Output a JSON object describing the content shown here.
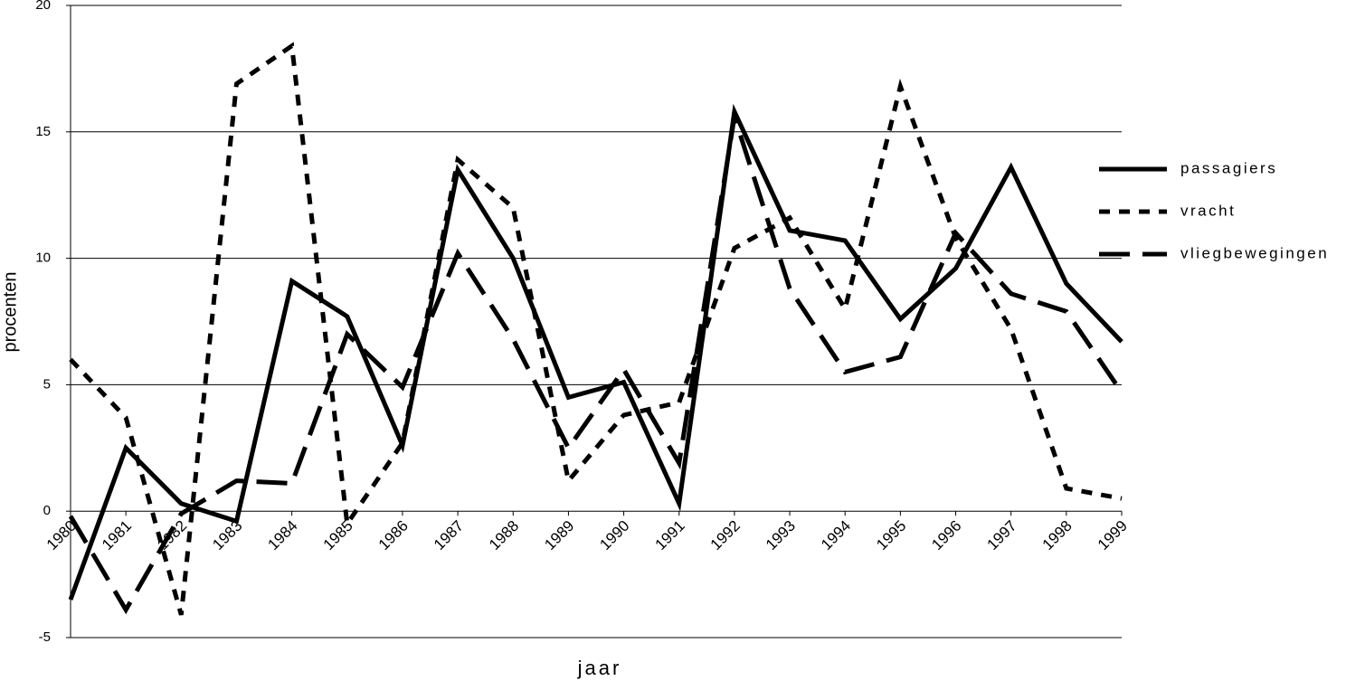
{
  "chart_data": {
    "type": "line",
    "x_label": "jaar",
    "y_label": "procenten",
    "categories": [
      "1980",
      "1981",
      "1982",
      "1983",
      "1984",
      "1985",
      "1986",
      "1987",
      "1988",
      "1989",
      "1990",
      "1991",
      "1992",
      "1993",
      "1994",
      "1995",
      "1996",
      "1997",
      "1998",
      "1999"
    ],
    "series": [
      {
        "name": "passagiers",
        "color": "#000000",
        "line_style": "solid",
        "values": [
          -3.5,
          2.5,
          0.3,
          -0.4,
          9.1,
          7.7,
          2.6,
          13.5,
          10.0,
          4.5,
          5.1,
          0.3,
          15.8,
          11.1,
          10.7,
          7.6,
          9.6,
          13.6,
          9.0,
          6.7
        ]
      },
      {
        "name": "vracht",
        "color": "#000000",
        "line_style": "short-dash",
        "values": [
          6.0,
          3.7,
          -4.1,
          16.9,
          18.4,
          -0.5,
          2.7,
          13.9,
          12.0,
          1.2,
          3.8,
          4.3,
          10.4,
          11.6,
          8.0,
          16.8,
          10.8,
          7.2,
          0.9,
          0.5
        ]
      },
      {
        "name": "vliegbewegingen",
        "color": "#000000",
        "line_style": "long-dash",
        "values": [
          -0.2,
          -3.9,
          -0.1,
          1.2,
          1.1,
          7.0,
          4.9,
          10.2,
          6.8,
          2.5,
          5.6,
          1.9,
          15.6,
          8.8,
          5.5,
          6.1,
          11.0,
          8.6,
          7.9,
          4.7
        ]
      }
    ],
    "ylim": [
      -5,
      20
    ],
    "yticks": [
      -5,
      0,
      5,
      10,
      15,
      20
    ],
    "grid": true,
    "legend": "right"
  }
}
